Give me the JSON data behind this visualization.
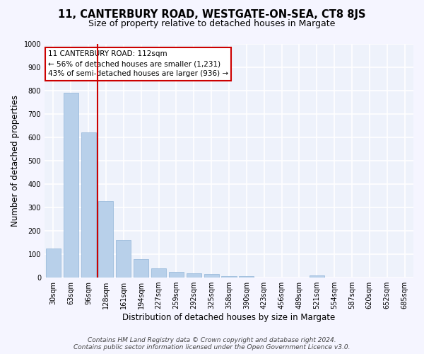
{
  "title": "11, CANTERBURY ROAD, WESTGATE-ON-SEA, CT8 8JS",
  "subtitle": "Size of property relative to detached houses in Margate",
  "xlabel": "Distribution of detached houses by size in Margate",
  "ylabel": "Number of detached properties",
  "categories": [
    "30sqm",
    "63sqm",
    "96sqm",
    "128sqm",
    "161sqm",
    "194sqm",
    "227sqm",
    "259sqm",
    "292sqm",
    "325sqm",
    "358sqm",
    "390sqm",
    "423sqm",
    "456sqm",
    "489sqm",
    "521sqm",
    "554sqm",
    "587sqm",
    "620sqm",
    "652sqm",
    "685sqm"
  ],
  "values": [
    125,
    790,
    620,
    328,
    162,
    78,
    40,
    25,
    18,
    15,
    7,
    7,
    0,
    0,
    0,
    8,
    0,
    0,
    0,
    0,
    0
  ],
  "bar_color": "#b8d0ea",
  "bar_edge_color": "#90b4d8",
  "vline_color": "#cc0000",
  "annotation_box_text": "11 CANTERBURY ROAD: 112sqm\n← 56% of detached houses are smaller (1,231)\n43% of semi-detached houses are larger (936) →",
  "box_edge_color": "#cc0000",
  "ylim": [
    0,
    1000
  ],
  "yticks": [
    0,
    100,
    200,
    300,
    400,
    500,
    600,
    700,
    800,
    900,
    1000
  ],
  "footer_line1": "Contains HM Land Registry data © Crown copyright and database right 2024.",
  "footer_line2": "Contains public sector information licensed under the Open Government Licence v3.0.",
  "background_color": "#eef2fb",
  "grid_color": "#ffffff",
  "title_fontsize": 10.5,
  "subtitle_fontsize": 9,
  "axis_label_fontsize": 8.5,
  "tick_fontsize": 7,
  "annotation_fontsize": 7.5,
  "footer_fontsize": 6.5
}
